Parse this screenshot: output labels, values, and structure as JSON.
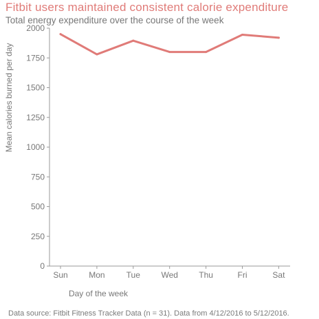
{
  "title": "Fitbit users maintained consistent calorie expenditure",
  "subtitle": "Total energy expenditure over the course of the week",
  "caption": "Data source: Fitbit Fitness Tracker Data (n = 31). Data from 4/12/2016 to 5/12/2016.",
  "colors": {
    "line": "#e07b78",
    "title": "#e07b78",
    "text": "#777777",
    "axis": "#9a9a9a"
  },
  "chart_data": {
    "type": "line",
    "categories": [
      "Sun",
      "Mon",
      "Tue",
      "Wed",
      "Thu",
      "Fri",
      "Sat"
    ],
    "values": [
      1950,
      1780,
      1895,
      1800,
      1800,
      1945,
      1920
    ],
    "xlabel": "Day of the week",
    "ylabel": "Mean calories burned per day",
    "ylim": [
      0,
      2000
    ],
    "yticks": [
      0,
      250,
      500,
      750,
      1000,
      1250,
      1500,
      1750,
      2000
    ],
    "grid": false,
    "legend": "none"
  }
}
